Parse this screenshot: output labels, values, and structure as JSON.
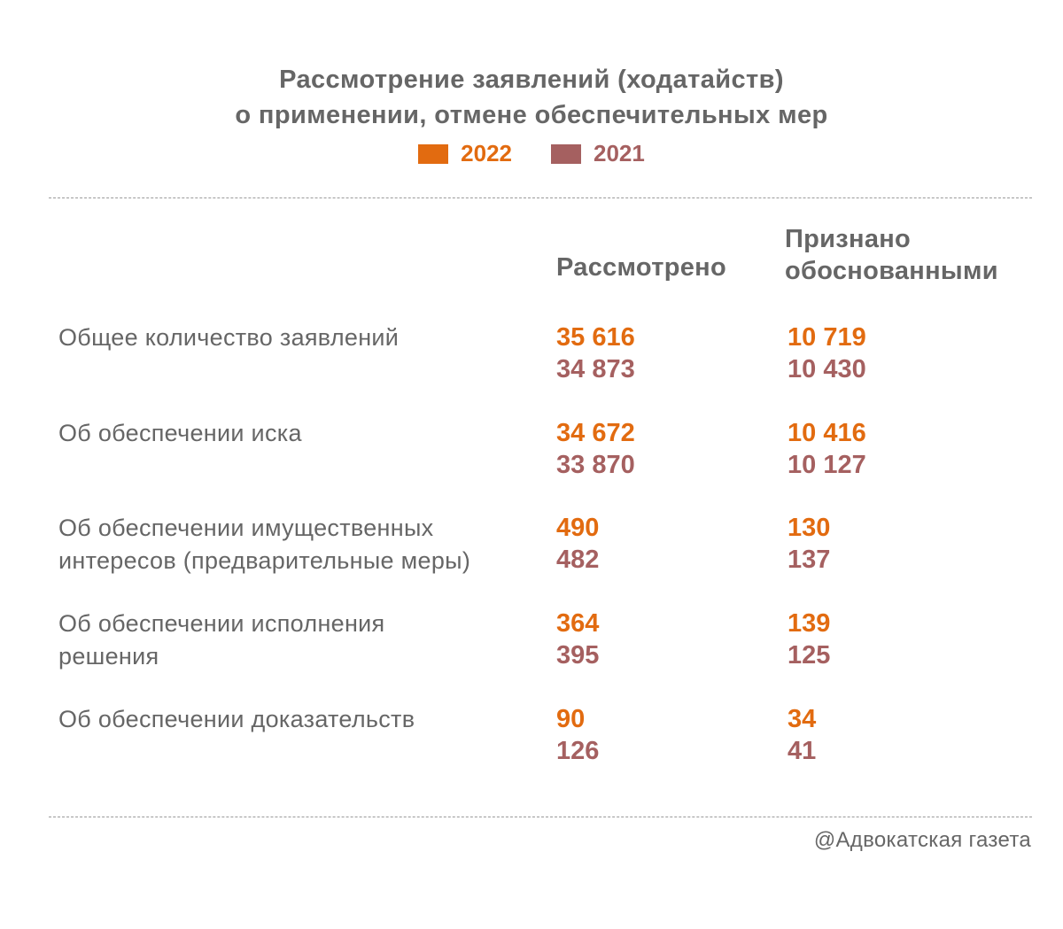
{
  "chart_data": {
    "type": "table",
    "title_line1": "Рассмотрение заявлений (ходатайств)",
    "title_line2": "о применении, отмене обеспечительных мер",
    "legend": [
      {
        "name": "2022",
        "color": "#e26b10"
      },
      {
        "name": "2021",
        "color": "#a56060"
      }
    ],
    "columns": [
      {
        "line1": "",
        "line2": "Рассмотрено"
      },
      {
        "line1": "Признано",
        "line2": "обоснованными"
      }
    ],
    "rows": [
      {
        "label_lines": [
          "Общее количество заявлений"
        ],
        "considered": {
          "2022": "35 616",
          "2021": "34 873"
        },
        "granted": {
          "2022": "10 719",
          "2021": "10 430"
        }
      },
      {
        "label_lines": [
          "Об обеспечении иска"
        ],
        "considered": {
          "2022": "34 672",
          "2021": "33 870"
        },
        "granted": {
          "2022": "10 416",
          "2021": "10 127"
        }
      },
      {
        "label_lines": [
          "Об обеспечении имущественных",
          "интересов (предварительные меры)"
        ],
        "considered": {
          "2022": "490",
          "2021": "482"
        },
        "granted": {
          "2022": "130",
          "2021": "137"
        }
      },
      {
        "label_lines": [
          "Об обеспечении исполнения",
          "решения"
        ],
        "considered": {
          "2022": "364",
          "2021": "395"
        },
        "granted": {
          "2022": "139",
          "2021": "125"
        }
      },
      {
        "label_lines": [
          "Об обеспечении доказательств"
        ],
        "considered": {
          "2022": "90",
          "2021": "126"
        },
        "granted": {
          "2022": "34",
          "2021": "41"
        }
      }
    ]
  },
  "source": "@Адвокатская газета"
}
